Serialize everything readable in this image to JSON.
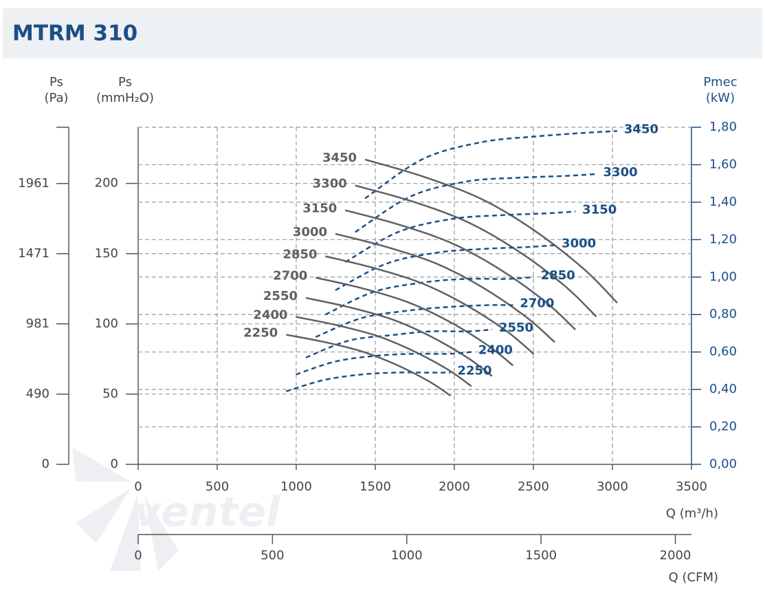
{
  "title": "MTRM 310",
  "watermark": "ventel",
  "chart_data": {
    "type": "fan_curve",
    "pa_label": "Ps",
    "pa_unit": "(Pa)",
    "y_label": "Ps",
    "y_unit": "(mmH₂O)",
    "y2_label": "Pmec",
    "y2_unit": "(kW)",
    "x_label": "Q (m³/h)",
    "x2_label": "Q (CFM)",
    "xlim": [
      0,
      3500
    ],
    "xticks": [
      0,
      500,
      1000,
      1500,
      2000,
      2500,
      3000,
      3500
    ],
    "x2lim": [
      0,
      2060
    ],
    "x2ticks": [
      0,
      500,
      1000,
      1500,
      2000
    ],
    "ylim": [
      0,
      240
    ],
    "yticks": [
      0,
      50,
      100,
      150,
      200
    ],
    "palim": [
      0,
      2354
    ],
    "paticks": [
      0,
      490,
      981,
      1471,
      1961
    ],
    "y2lim": [
      0,
      1.8
    ],
    "y2ticks": [
      {
        "value": 0,
        "label": "0,00"
      },
      {
        "value": 0.2,
        "label": "0,20"
      },
      {
        "value": 0.4,
        "label": "0,40"
      },
      {
        "value": 0.6,
        "label": "0,60"
      },
      {
        "value": 0.8,
        "label": "0,80"
      },
      {
        "value": 1.0,
        "label": "1,00"
      },
      {
        "value": 1.2,
        "label": "1,20"
      },
      {
        "value": 1.4,
        "label": "1,40"
      },
      {
        "value": 1.6,
        "label": "1,60"
      },
      {
        "value": 1.8,
        "label": "1,80"
      }
    ],
    "grid": true,
    "pressure_color": "#5f6062",
    "power_color": "#1b4f86",
    "series": [
      {
        "name": "3450",
        "q": [
          1435,
          1800,
          2170,
          2500,
          2820,
          3030
        ],
        "ps": [
          217,
          205,
          189,
          167,
          139,
          115
        ],
        "pmec": [
          1.42,
          1.63,
          1.72,
          1.75,
          1.77,
          1.78
        ]
      },
      {
        "name": "3300",
        "q": [
          1373,
          1722,
          2076,
          2391,
          2697,
          2898
        ],
        "ps": [
          198.5,
          187.6,
          172.9,
          152.8,
          127.2,
          105.2
        ],
        "pmec": [
          1.24,
          1.43,
          1.51,
          1.53,
          1.54,
          1.55
        ]
      },
      {
        "name": "3150",
        "q": [
          1310,
          1643,
          1981,
          2283,
          2575,
          2766
        ],
        "ps": [
          180.9,
          170.9,
          157.6,
          139.2,
          115.9,
          95.9
        ],
        "pmec": [
          1.08,
          1.24,
          1.31,
          1.33,
          1.34,
          1.35
        ]
      },
      {
        "name": "3000",
        "q": [
          1248,
          1565,
          1887,
          2174,
          2452,
          2635
        ],
        "ps": [
          164.1,
          155.0,
          142.9,
          126.3,
          105.1,
          87.0
        ],
        "pmec": [
          0.93,
          1.07,
          1.13,
          1.15,
          1.16,
          1.17
        ]
      },
      {
        "name": "2850",
        "q": [
          1185,
          1487,
          1793,
          2065,
          2330,
          2503
        ],
        "ps": [
          148.1,
          139.9,
          129.0,
          114.0,
          94.9,
          78.5
        ],
        "pmec": [
          0.8,
          0.92,
          0.97,
          0.99,
          0.99,
          1.0
        ]
      },
      {
        "name": "2700",
        "q": [
          1123,
          1409,
          1698,
          1957,
          2207,
          2371
        ],
        "ps": [
          132.9,
          125.6,
          115.8,
          102.3,
          85.1,
          70.4
        ],
        "pmec": [
          0.68,
          0.78,
          0.82,
          0.84,
          0.85,
          0.85
        ]
      },
      {
        "name": "2550",
        "q": [
          1061,
          1330,
          1604,
          1848,
          2084,
          2239
        ],
        "ps": [
          118.5,
          112.0,
          103.3,
          91.2,
          75.9,
          62.8
        ],
        "pmec": [
          0.57,
          0.66,
          0.69,
          0.71,
          0.71,
          0.72
        ]
      },
      {
        "name": "2400",
        "q": [
          998,
          1252,
          1510,
          1739,
          1962,
          2108
        ],
        "ps": [
          105.0,
          99.2,
          91.5,
          80.8,
          67.3,
          55.6
        ],
        "pmec": [
          0.48,
          0.55,
          0.58,
          0.59,
          0.59,
          0.6
        ]
      },
      {
        "name": "2250",
        "q": [
          936,
          1174,
          1415,
          1631,
          1839,
          1976
        ],
        "ps": [
          92.3,
          87.2,
          80.4,
          71.0,
          59.1,
          48.9
        ],
        "pmec": [
          0.39,
          0.45,
          0.48,
          0.49,
          0.49,
          0.49
        ]
      }
    ]
  }
}
